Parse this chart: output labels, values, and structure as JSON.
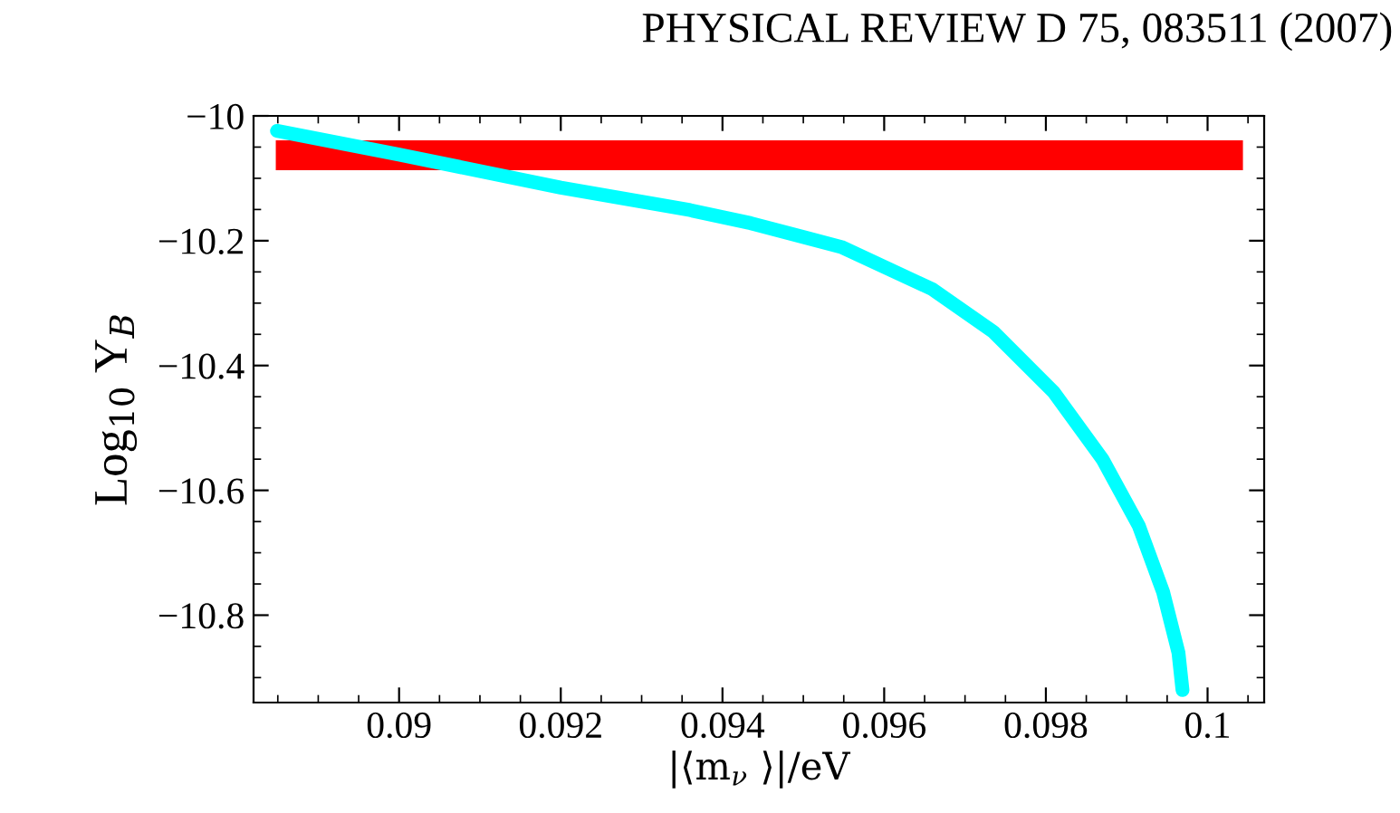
{
  "chart_data": {
    "type": "line",
    "annotations": [
      "PHYSICAL REVIEW D 75, 083511 (2007)"
    ],
    "xlabel": "|⟨m$_{ν}$ ⟩|/eV",
    "ylabel": "Log$_{10}$ Y$_{B}$",
    "series": [
      {
        "color": "#00ffff",
        "x": [
          0.08849,
          0.09,
          0.092,
          0.0936,
          0.09435,
          0.09547,
          0.0966,
          0.09735,
          0.0981,
          0.0987,
          0.09915,
          0.09945,
          0.09964,
          0.09969
        ],
        "values": [
          -10.024,
          -10.062,
          -10.115,
          -10.151,
          -10.172,
          -10.21,
          -10.278,
          -10.346,
          -10.443,
          -10.55,
          -10.657,
          -10.763,
          -10.86,
          -10.92
        ]
      }
    ],
    "bands": [
      {
        "axis": "y",
        "from": -10.087,
        "to": -10.039,
        "color": "#ff0000"
      }
    ],
    "xlim": [
      0.0882,
      0.1007
    ],
    "ylim": [
      -10.94,
      -10
    ],
    "xticks": [
      0.09,
      0.092,
      0.094,
      0.096,
      0.098,
      0.1
    ],
    "yticks": [
      {
        "value": -10,
        "label": "−10"
      },
      {
        "value": -10.2,
        "label": "−10.2"
      },
      {
        "value": -10.4,
        "label": "−10.4"
      },
      {
        "value": -10.6,
        "label": "−10.6"
      },
      {
        "value": -10.8,
        "label": "−10.8"
      }
    ],
    "grid": false,
    "legend": false,
    "marker": "none",
    "line_style": "solid"
  }
}
